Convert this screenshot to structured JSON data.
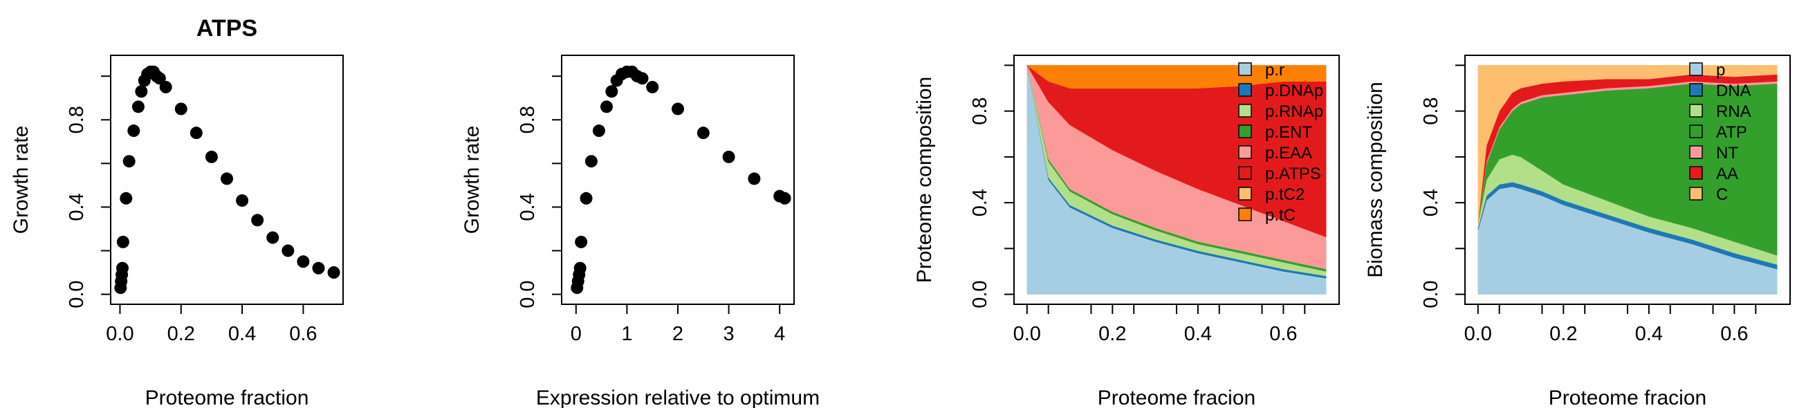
{
  "chart_data": [
    {
      "type": "scatter",
      "title": "ATPS",
      "xlabel": "Proteome fraction",
      "ylabel": "Growth rate",
      "xlim": [
        0,
        0.7
      ],
      "ylim": [
        0,
        1.05
      ],
      "xticks": [
        "0.0",
        "0.2",
        "0.4",
        "0.6"
      ],
      "yticks": [
        "0.0",
        "0.4",
        "0.8"
      ],
      "x": [
        0.002,
        0.004,
        0.006,
        0.008,
        0.01,
        0.02,
        0.03,
        0.045,
        0.06,
        0.07,
        0.08,
        0.09,
        0.1,
        0.11,
        0.12,
        0.13,
        0.15,
        0.2,
        0.25,
        0.3,
        0.35,
        0.4,
        0.45,
        0.5,
        0.55,
        0.6,
        0.65,
        0.7
      ],
      "y": [
        0.03,
        0.06,
        0.09,
        0.12,
        0.24,
        0.44,
        0.61,
        0.75,
        0.86,
        0.93,
        0.98,
        1.01,
        1.02,
        1.02,
        1.0,
        0.99,
        0.95,
        0.85,
        0.74,
        0.63,
        0.53,
        0.43,
        0.34,
        0.26,
        0.2,
        0.15,
        0.12,
        0.1
      ]
    },
    {
      "type": "scatter",
      "title": "",
      "xlabel": "Expression relative to optimum",
      "ylabel": "Growth rate",
      "xlim": [
        -0.1,
        4.1
      ],
      "ylim": [
        0,
        1.05
      ],
      "xticks": [
        "0",
        "1",
        "2",
        "3",
        "4"
      ],
      "yticks": [
        "0.0",
        "0.4",
        "0.8"
      ],
      "x": [
        0.02,
        0.04,
        0.06,
        0.08,
        0.1,
        0.2,
        0.3,
        0.45,
        0.6,
        0.7,
        0.8,
        0.9,
        1.0,
        1.1,
        1.2,
        1.3,
        1.5,
        2.0,
        2.5,
        3.0,
        3.5,
        4.0,
        4.1
      ],
      "y": [
        0.03,
        0.06,
        0.09,
        0.12,
        0.24,
        0.44,
        0.61,
        0.75,
        0.86,
        0.93,
        0.98,
        1.01,
        1.02,
        1.02,
        1.0,
        0.99,
        0.95,
        0.85,
        0.74,
        0.63,
        0.53,
        0.45,
        0.44
      ]
    },
    {
      "type": "area",
      "title": "",
      "xlabel": "Proteome fracion",
      "ylabel": "Proteome composition",
      "xlim": [
        0,
        0.7
      ],
      "ylim": [
        0,
        1
      ],
      "stacked": true,
      "xticks": [
        "0.0",
        "0.2",
        "0.4",
        "0.6"
      ],
      "yticks": [
        "0.0",
        "0.4",
        "0.8"
      ],
      "legend_position": "top-right",
      "x": [
        0.0,
        0.05,
        0.1,
        0.2,
        0.3,
        0.4,
        0.5,
        0.6,
        0.7
      ],
      "series": [
        {
          "name": "p.r",
          "color": "#a6cee3",
          "values": [
            1.0,
            0.5,
            0.38,
            0.29,
            0.23,
            0.18,
            0.14,
            0.1,
            0.07
          ]
        },
        {
          "name": "p.DNAp",
          "color": "#1f78b4",
          "values": [
            0.0,
            0.01,
            0.01,
            0.01,
            0.01,
            0.01,
            0.01,
            0.01,
            0.01
          ]
        },
        {
          "name": "p.RNAp",
          "color": "#b2df8a",
          "values": [
            0.0,
            0.07,
            0.06,
            0.05,
            0.04,
            0.03,
            0.03,
            0.03,
            0.02
          ]
        },
        {
          "name": "p.ENT",
          "color": "#33a02c",
          "values": [
            0.0,
            0.01,
            0.01,
            0.01,
            0.01,
            0.01,
            0.01,
            0.01,
            0.01
          ]
        },
        {
          "name": "p.EAA",
          "color": "#fb9a99",
          "values": [
            0.0,
            0.25,
            0.28,
            0.27,
            0.25,
            0.23,
            0.2,
            0.17,
            0.14
          ]
        },
        {
          "name": "p.ATPS",
          "color": "#e31a1c",
          "values": [
            0.0,
            0.09,
            0.16,
            0.27,
            0.36,
            0.44,
            0.52,
            0.61,
            0.68
          ]
        },
        {
          "name": "p.tC2",
          "color": "#fdbf6f",
          "values": [
            0.0,
            0.0,
            0.0,
            0.0,
            0.0,
            0.0,
            0.0,
            0.0,
            0.0
          ]
        },
        {
          "name": "p.tC",
          "color": "#ff7f00",
          "values": [
            0.0,
            0.07,
            0.1,
            0.1,
            0.1,
            0.1,
            0.09,
            0.07,
            0.07
          ]
        }
      ]
    },
    {
      "type": "area",
      "title": "",
      "xlabel": "Proteome fracion",
      "ylabel": "Biomass composition",
      "xlim": [
        0,
        0.7
      ],
      "ylim": [
        0,
        1
      ],
      "stacked": true,
      "xticks": [
        "0.0",
        "0.2",
        "0.4",
        "0.6"
      ],
      "yticks": [
        "0.0",
        "0.4",
        "0.8"
      ],
      "legend_position": "top-right",
      "x": [
        0.0,
        0.02,
        0.05,
        0.08,
        0.1,
        0.15,
        0.2,
        0.3,
        0.4,
        0.5,
        0.6,
        0.7
      ],
      "series": [
        {
          "name": "p",
          "color": "#a6cee3",
          "values": [
            0.28,
            0.41,
            0.46,
            0.47,
            0.46,
            0.43,
            0.39,
            0.33,
            0.27,
            0.22,
            0.16,
            0.11
          ]
        },
        {
          "name": "DNA",
          "color": "#1f78b4",
          "values": [
            0.01,
            0.02,
            0.02,
            0.02,
            0.02,
            0.02,
            0.02,
            0.02,
            0.02,
            0.02,
            0.02,
            0.02
          ]
        },
        {
          "name": "RNA",
          "color": "#b2df8a",
          "values": [
            0.02,
            0.07,
            0.11,
            0.12,
            0.12,
            0.09,
            0.07,
            0.06,
            0.05,
            0.05,
            0.05,
            0.04
          ]
        },
        {
          "name": "ATP",
          "color": "#33a02c",
          "values": [
            0.0,
            0.07,
            0.13,
            0.19,
            0.23,
            0.32,
            0.39,
            0.48,
            0.56,
            0.63,
            0.68,
            0.75
          ]
        },
        {
          "name": "NT",
          "color": "#fb9a99",
          "values": [
            0.0,
            0.01,
            0.01,
            0.01,
            0.01,
            0.01,
            0.01,
            0.01,
            0.01,
            0.01,
            0.01,
            0.01
          ]
        },
        {
          "name": "AA",
          "color": "#e31a1c",
          "values": [
            0.0,
            0.07,
            0.07,
            0.07,
            0.06,
            0.05,
            0.05,
            0.04,
            0.03,
            0.03,
            0.03,
            0.03
          ]
        },
        {
          "name": "C",
          "color": "#fdbf6f",
          "values": [
            0.69,
            0.35,
            0.2,
            0.12,
            0.1,
            0.08,
            0.07,
            0.06,
            0.06,
            0.04,
            0.05,
            0.04
          ]
        }
      ]
    }
  ]
}
